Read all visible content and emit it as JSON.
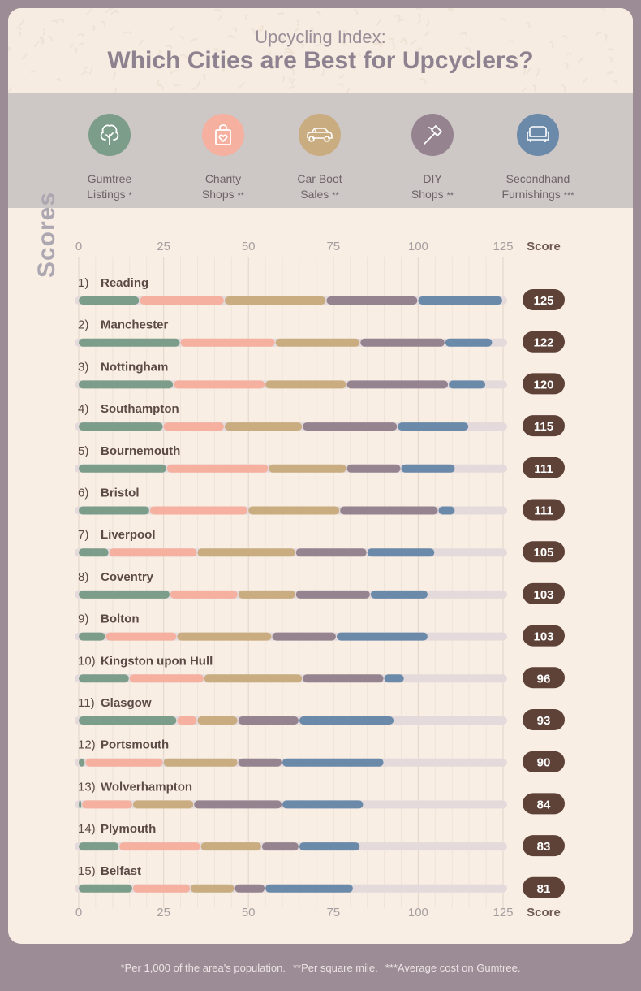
{
  "header": {
    "subtitle": "Upcycling Index:",
    "title": "Which Cities are Best for Upcyclers?"
  },
  "scores_band": {
    "label": "Scores",
    "categories": [
      {
        "line1": "Gumtree",
        "line2": "Listings",
        "note": "*",
        "color": "#7c9d8a",
        "icon": "tree-icon"
      },
      {
        "line1": "Charity",
        "line2": "Shops",
        "note": "**",
        "color": "#f5b0a0",
        "icon": "shopping-bag-heart-icon"
      },
      {
        "line1": "Car Boot",
        "line2": "Sales",
        "note": "**",
        "color": "#c9ad80",
        "icon": "car-icon"
      },
      {
        "line1": "DIY",
        "line2": "Shops",
        "note": "**",
        "color": "#958490",
        "icon": "hammer-icon"
      },
      {
        "line1": "Secondhand",
        "line2": "Furnishings",
        "note": "***",
        "color": "#6b8aa9",
        "icon": "sofa-icon"
      }
    ]
  },
  "chart_data": {
    "type": "bar",
    "orientation": "horizontal",
    "stacked": true,
    "score_label": "Score",
    "xlim": [
      0,
      125
    ],
    "x_ticks": [
      0,
      25,
      50,
      75,
      100,
      125
    ],
    "grid": true,
    "categories": [
      "Reading",
      "Manchester",
      "Nottingham",
      "Southampton",
      "Bournemouth",
      "Bristol",
      "Liverpool",
      "Coventry",
      "Bolton",
      "Kingston upon Hull",
      "Glasgow",
      "Portsmouth",
      "Wolverhampton",
      "Plymouth",
      "Belfast"
    ],
    "ranks": [
      "1)",
      "2)",
      "3)",
      "4)",
      "5)",
      "6)",
      "7)",
      "8)",
      "9)",
      "10)",
      "11)",
      "12)",
      "13)",
      "14)",
      "15)"
    ],
    "scores": [
      125,
      122,
      120,
      115,
      111,
      111,
      105,
      103,
      103,
      96,
      93,
      90,
      84,
      83,
      81
    ],
    "series": [
      {
        "name": "Gumtree Listings",
        "color": "#7c9d8a",
        "values": [
          18,
          30,
          28,
          25,
          26,
          21,
          9,
          27,
          8,
          15,
          29,
          2,
          1,
          12,
          16
        ]
      },
      {
        "name": "Charity Shops",
        "color": "#f5b0a0",
        "values": [
          25,
          28,
          27,
          18,
          30,
          29,
          26,
          20,
          21,
          22,
          6,
          23,
          15,
          24,
          17
        ]
      },
      {
        "name": "Car Boot Sales",
        "color": "#c9ad80",
        "values": [
          30,
          25,
          24,
          23,
          23,
          27,
          29,
          17,
          28,
          29,
          12,
          22,
          18,
          18,
          13
        ]
      },
      {
        "name": "DIY Shops",
        "color": "#958490",
        "values": [
          27,
          25,
          30,
          28,
          16,
          29,
          21,
          22,
          19,
          24,
          18,
          13,
          26,
          11,
          9
        ]
      },
      {
        "name": "Secondhand Furnishings",
        "color": "#6b8aa9",
        "values": [
          25,
          14,
          11,
          21,
          16,
          5,
          20,
          17,
          27,
          6,
          28,
          30,
          24,
          18,
          26
        ]
      }
    ],
    "track_color": "#e4dadb",
    "score_pill_color": "#5e4238"
  },
  "footnote": {
    "note1": "*Per 1,000 of the area's population.",
    "note2": "**Per square mile.",
    "note3": "***Average cost on Gumtree."
  }
}
